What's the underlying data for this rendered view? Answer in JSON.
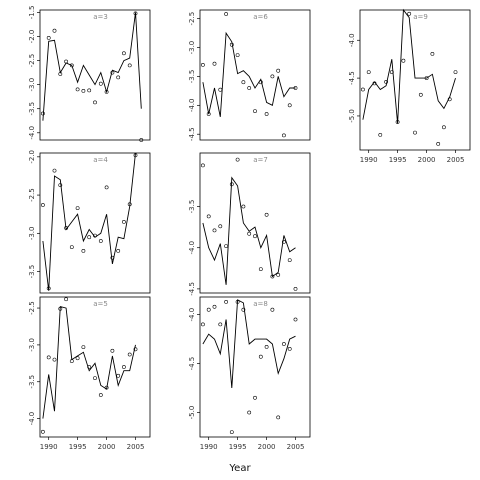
{
  "figure": {
    "xlabel": "Year",
    "colors": {
      "line": "#000000",
      "point_stroke": "#000000",
      "panel_label": "#888888",
      "frame": "#000000"
    }
  },
  "chart_data": [
    {
      "type": "line",
      "panel_label": "a=3",
      "xlim": [
        1988.5,
        2007.5
      ],
      "ylim": [
        -4.15,
        -1.45
      ],
      "xticks": [],
      "yticks": [
        -1.5,
        -2.0,
        -2.5,
        -3.0,
        -3.5,
        -4.0
      ],
      "series": [
        {
          "kind": "line",
          "x": [
            1989,
            1990,
            1991,
            1992,
            1993,
            1994,
            1995,
            1996,
            1997,
            1998,
            1999,
            2000,
            2001,
            2002,
            2003,
            2004,
            2005,
            2006
          ],
          "y": [
            -3.75,
            -2.1,
            -2.08,
            -2.75,
            -2.55,
            -2.6,
            -2.95,
            -2.6,
            -2.8,
            -3.0,
            -2.75,
            -3.15,
            -2.7,
            -2.75,
            -2.5,
            -2.45,
            -1.5,
            -3.5
          ]
        },
        {
          "kind": "points",
          "x": [
            1989,
            1990,
            1991,
            1992,
            1993,
            1994,
            1995,
            1996,
            1997,
            1998,
            1999,
            2000,
            2001,
            2002,
            2003,
            2004,
            2005,
            2006
          ],
          "y": [
            -3.6,
            -2.03,
            -1.88,
            -2.78,
            -2.52,
            -2.6,
            -3.1,
            -3.13,
            -3.12,
            -3.37,
            -2.98,
            -3.15,
            -2.75,
            -2.85,
            -2.35,
            -2.6,
            -1.52,
            -4.15
          ]
        }
      ]
    },
    {
      "type": "line",
      "panel_label": "a=6",
      "xlim": [
        1988.5,
        2007.5
      ],
      "ylim": [
        -4.6,
        -2.35
      ],
      "xticks": [],
      "yticks": [
        -2.5,
        -3.0,
        -3.5,
        -4.0,
        -4.5
      ],
      "series": [
        {
          "kind": "line",
          "x": [
            1989,
            1990,
            1991,
            1992,
            1993,
            1994,
            1995,
            1996,
            1997,
            1998,
            1999,
            2000,
            2001,
            2002,
            2003,
            2004,
            2005,
            2006
          ],
          "y": [
            -3.6,
            -4.15,
            -3.7,
            -4.2,
            -2.75,
            -2.9,
            -3.45,
            -3.4,
            -3.5,
            -3.7,
            -3.55,
            -3.95,
            -4.0,
            -3.5,
            -3.85,
            -3.7,
            -3.7,
            null
          ]
        },
        {
          "kind": "points",
          "x": [
            1989,
            1990,
            1991,
            1992,
            1993,
            1994,
            1995,
            1996,
            1997,
            1998,
            1999,
            2000,
            2001,
            2002,
            2003,
            2004,
            2005,
            2006
          ],
          "y": [
            -3.3,
            -4.15,
            -3.28,
            -3.73,
            -2.42,
            -2.95,
            -3.13,
            -3.6,
            -3.7,
            -4.1,
            -3.6,
            -4.15,
            -3.5,
            -3.4,
            -4.52,
            -4.0,
            -3.7,
            null
          ]
        }
      ]
    },
    {
      "type": "line",
      "panel_label": "a=9",
      "xlim": [
        1988.5,
        2007.5
      ],
      "ylim": [
        -5.45,
        -3.6
      ],
      "xticks": [
        1990,
        1995,
        2000,
        2005
      ],
      "yticks": [
        -4.0,
        -4.5,
        -5.0
      ],
      "series": [
        {
          "kind": "line",
          "x": [
            1989,
            1990,
            1991,
            1992,
            1993,
            1994,
            1995,
            1996,
            1997,
            1998,
            1999,
            2000,
            2001,
            2002,
            2003,
            2004,
            2005,
            2006
          ],
          "y": [
            -5.05,
            -4.65,
            -4.55,
            -4.65,
            -4.6,
            -4.25,
            -5.1,
            -3.6,
            -3.7,
            -4.5,
            -4.5,
            -4.5,
            -4.45,
            -4.8,
            -4.9,
            -4.75,
            -4.5,
            null
          ]
        },
        {
          "kind": "points",
          "x": [
            1989,
            1990,
            1991,
            1992,
            1993,
            1994,
            1995,
            1996,
            1997,
            1998,
            1999,
            2000,
            2001,
            2002,
            2003,
            2004,
            2005,
            2006
          ],
          "y": [
            -4.65,
            -4.42,
            -4.57,
            -5.25,
            -4.55,
            -4.42,
            -5.08,
            -4.27,
            -3.65,
            -5.22,
            -4.72,
            -4.5,
            -4.18,
            -5.37,
            -5.15,
            -4.78,
            -4.42,
            null
          ]
        }
      ]
    },
    {
      "type": "line",
      "panel_label": "a=4",
      "xlim": [
        1988.5,
        2007.5
      ],
      "ylim": [
        -3.78,
        -1.95
      ],
      "xticks": [],
      "yticks": [
        -2.0,
        -2.5,
        -3.0,
        -3.5
      ],
      "series": [
        {
          "kind": "line",
          "x": [
            1989,
            1990,
            1991,
            1992,
            1993,
            1994,
            1995,
            1996,
            1997,
            1998,
            1999,
            2000,
            2001,
            2002,
            2003,
            2004,
            2005,
            2006
          ],
          "y": [
            -3.1,
            -3.75,
            -2.25,
            -2.3,
            -2.95,
            -2.85,
            -2.75,
            -3.1,
            -2.95,
            -3.05,
            -3.0,
            -2.75,
            -3.4,
            -3.05,
            -3.07,
            -2.65,
            -1.95,
            null
          ]
        },
        {
          "kind": "points",
          "x": [
            1989,
            1990,
            1991,
            1992,
            1993,
            1994,
            1995,
            1996,
            1997,
            1998,
            1999,
            2000,
            2001,
            2002,
            2003,
            2004,
            2005,
            2006
          ],
          "y": [
            -2.63,
            -3.72,
            -2.18,
            -2.37,
            -2.93,
            -3.18,
            -2.67,
            -3.23,
            -3.05,
            -3.03,
            -3.1,
            -2.4,
            -3.32,
            -3.23,
            -2.85,
            -2.62,
            -1.98,
            null
          ]
        }
      ]
    },
    {
      "type": "line",
      "panel_label": "a=7",
      "xlim": [
        1988.5,
        2007.5
      ],
      "ylim": [
        -4.55,
        -2.85
      ],
      "xticks": [],
      "yticks": [
        -3.5,
        -4.0,
        -4.5
      ],
      "series": [
        {
          "kind": "line",
          "x": [
            1989,
            1990,
            1991,
            1992,
            1993,
            1994,
            1995,
            1996,
            1997,
            1998,
            1999,
            2000,
            2001,
            2002,
            2003,
            2004,
            2005,
            2006
          ],
          "y": [
            -3.7,
            -4.0,
            -4.15,
            -3.95,
            -4.45,
            -3.15,
            -3.25,
            -3.7,
            -3.8,
            -3.75,
            -4.0,
            -3.85,
            -4.35,
            -4.3,
            -3.85,
            -4.05,
            -4.0,
            null
          ]
        },
        {
          "kind": "points",
          "x": [
            1989,
            1990,
            1991,
            1992,
            1993,
            1994,
            1995,
            1996,
            1997,
            1998,
            1999,
            2000,
            2001,
            2002,
            2003,
            2004,
            2005,
            2006
          ],
          "y": [
            -3.0,
            -3.62,
            -3.79,
            -3.74,
            -3.98,
            -3.23,
            -2.93,
            -3.5,
            -3.83,
            -3.86,
            -4.26,
            -3.6,
            -4.35,
            -4.33,
            -3.93,
            -4.15,
            -4.5,
            null
          ]
        }
      ]
    },
    {
      "type": "line",
      "panel_label": "a=5",
      "xlim": [
        1988.5,
        2007.5
      ],
      "ylim": [
        -4.25,
        -2.35
      ],
      "xticks": [
        1990,
        1995,
        2000,
        2005
      ],
      "yticks": [
        -2.5,
        -3.0,
        -3.5,
        -4.0
      ],
      "series": [
        {
          "kind": "line",
          "x": [
            1989,
            1990,
            1991,
            1992,
            1993,
            1994,
            1995,
            1996,
            1997,
            1998,
            1999,
            2000,
            2001,
            2002,
            2003,
            2004,
            2005,
            2006
          ],
          "y": [
            -4.0,
            -3.4,
            -3.9,
            -2.48,
            -2.5,
            -3.2,
            -3.15,
            -3.1,
            -3.35,
            -3.25,
            -3.55,
            -3.6,
            -3.15,
            -3.55,
            -3.35,
            -3.35,
            -3.0,
            null
          ]
        },
        {
          "kind": "points",
          "x": [
            1989,
            1990,
            1991,
            1992,
            1993,
            1994,
            1995,
            1996,
            1997,
            1998,
            1999,
            2000,
            2001,
            2002,
            2003,
            2004,
            2005,
            2006
          ],
          "y": [
            -4.18,
            -3.17,
            -3.2,
            -2.51,
            -2.38,
            -3.22,
            -3.18,
            -3.03,
            -3.3,
            -3.45,
            -3.68,
            -3.58,
            -3.08,
            -3.42,
            -3.3,
            -3.13,
            -3.06,
            null
          ]
        }
      ]
    },
    {
      "type": "line",
      "panel_label": "a=8",
      "xlim": [
        1988.5,
        2007.5
      ],
      "ylim": [
        -5.25,
        -3.82
      ],
      "xticks": [
        1990,
        1995,
        2000,
        2005
      ],
      "yticks": [
        -4.0,
        -4.5,
        -5.0
      ],
      "series": [
        {
          "kind": "line",
          "x": [
            1989,
            1990,
            1991,
            1992,
            1993,
            1994,
            1995,
            1996,
            1997,
            1998,
            1999,
            2000,
            2001,
            2002,
            2003,
            2004,
            2005,
            2006
          ],
          "y": [
            -4.3,
            -4.2,
            -4.25,
            -4.4,
            -4.05,
            -4.75,
            -3.85,
            -3.88,
            -4.3,
            -4.25,
            -4.25,
            -4.25,
            -4.3,
            -4.6,
            -4.45,
            -4.25,
            -4.22,
            null
          ]
        },
        {
          "kind": "points",
          "x": [
            1989,
            1990,
            1991,
            1992,
            1993,
            1994,
            1995,
            1996,
            1997,
            1998,
            1999,
            2000,
            2001,
            2002,
            2003,
            2004,
            2005,
            2006
          ],
          "y": [
            -4.1,
            -3.95,
            -3.92,
            -4.1,
            -3.87,
            -5.2,
            -3.87,
            -3.95,
            -5.0,
            -4.85,
            -4.43,
            -4.33,
            -3.95,
            -5.05,
            -4.3,
            -4.35,
            -4.05,
            null
          ]
        }
      ]
    }
  ]
}
